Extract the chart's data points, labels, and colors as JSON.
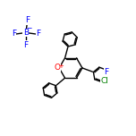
{
  "bg_color": "#ffffff",
  "bond_color": "#000000",
  "atom_colors": {
    "O": "#ff0000",
    "F": "#0000ff",
    "B": "#0000ff",
    "Cl": "#008000",
    "C": "#000000"
  },
  "bond_width": 1.0,
  "figsize": [
    1.52,
    1.52
  ],
  "dpi": 100,
  "xlim": [
    0,
    10
  ],
  "ylim": [
    0,
    10
  ]
}
